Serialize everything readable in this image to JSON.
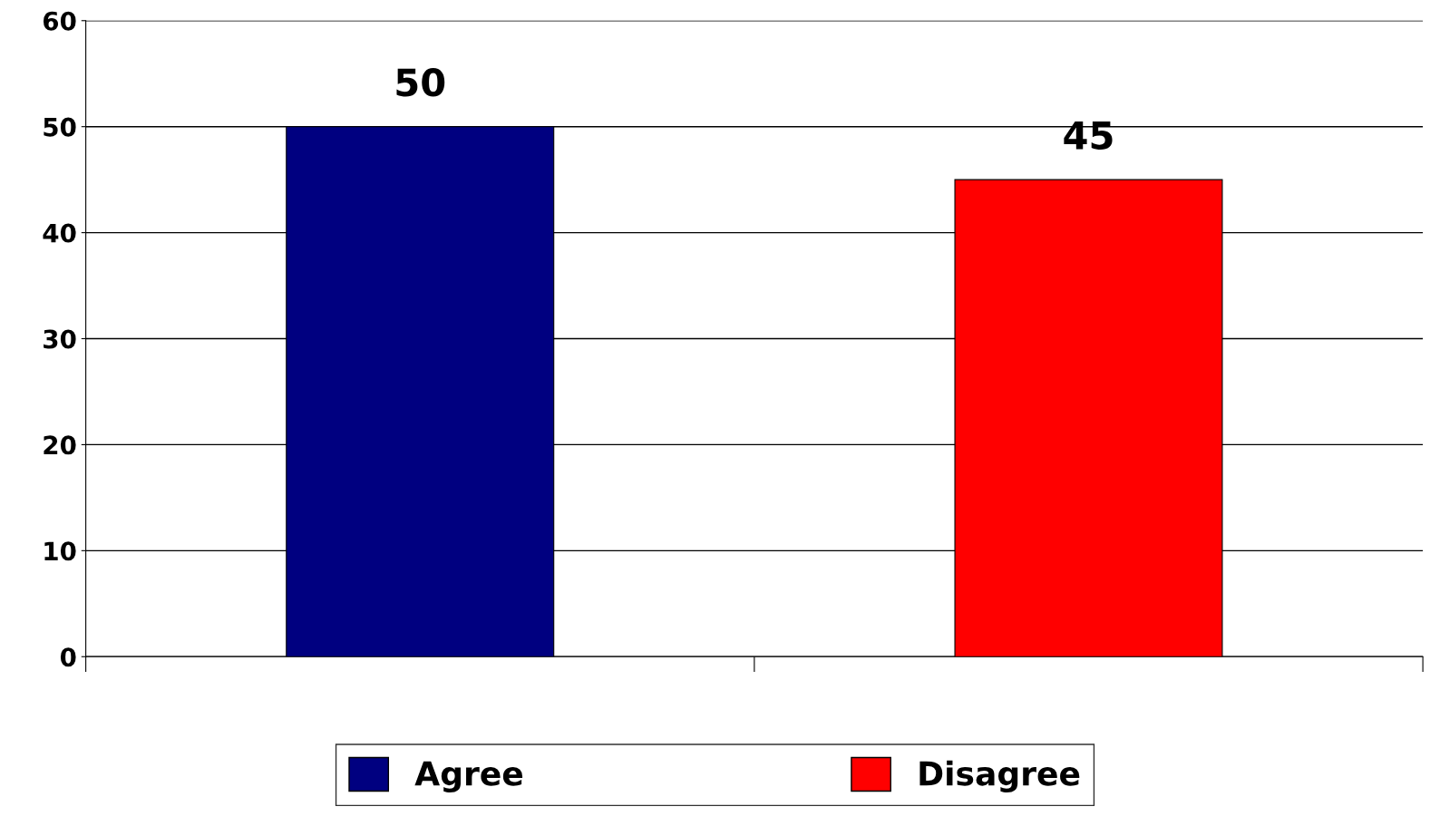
{
  "chart_data": {
    "type": "bar",
    "categories": [
      null,
      null
    ],
    "series": [
      {
        "name": "Agree",
        "color": "#000080",
        "values": [
          50,
          null
        ]
      },
      {
        "name": "Disagree",
        "color": "#ff0000",
        "values": [
          null,
          45
        ]
      }
    ],
    "ylim": [
      0,
      60
    ],
    "yticks": [
      0,
      10,
      20,
      30,
      40,
      50,
      60
    ],
    "grid": "y",
    "legend": "bottom",
    "data_labels": true
  }
}
